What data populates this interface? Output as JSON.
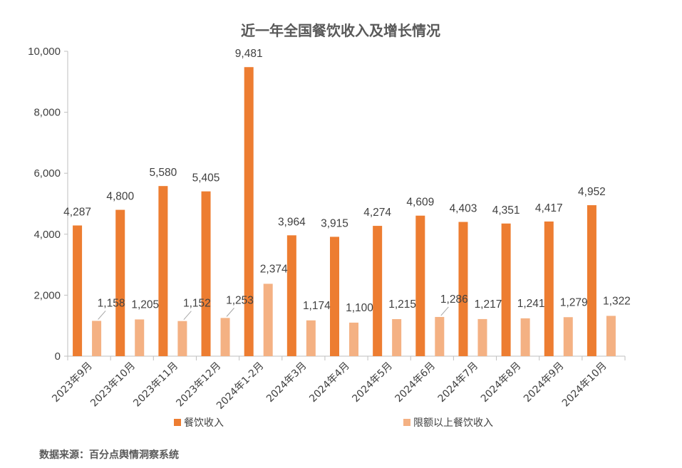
{
  "chart_data": {
    "type": "bar",
    "title": "近一年全国餐饮收入及增长情况",
    "categories": [
      "2023年9月",
      "2023年10月",
      "2023年11月",
      "2023年12月",
      "2024年1-2月",
      "2024年3月",
      "2024年4月",
      "2024年5月",
      "2024年6月",
      "2024年7月",
      "2024年8月",
      "2024年9月",
      "2024年10月"
    ],
    "series": [
      {
        "name": "餐饮收入",
        "color": "#ED7D31",
        "values": [
          4287,
          4800,
          5580,
          5405,
          9481,
          3964,
          3915,
          4274,
          4609,
          4403,
          4351,
          4417,
          4952
        ]
      },
      {
        "name": "限额以上餐饮收入",
        "color": "#F4B183",
        "values": [
          1158,
          1205,
          1152,
          1253,
          2374,
          1174,
          1100,
          1215,
          1286,
          1217,
          1241,
          1279,
          1322
        ]
      }
    ],
    "ylim": [
      0,
      10000
    ],
    "yticks": [
      "0",
      "2,000",
      "4,000",
      "6,000",
      "8,000",
      "10,000"
    ],
    "ytick_values": [
      0,
      2000,
      4000,
      6000,
      8000,
      10000
    ],
    "grid": false,
    "legend": "bottom",
    "xlabel": "",
    "ylabel": ""
  },
  "footer": {
    "source": "数据来源：百分点舆情洞察系统"
  }
}
